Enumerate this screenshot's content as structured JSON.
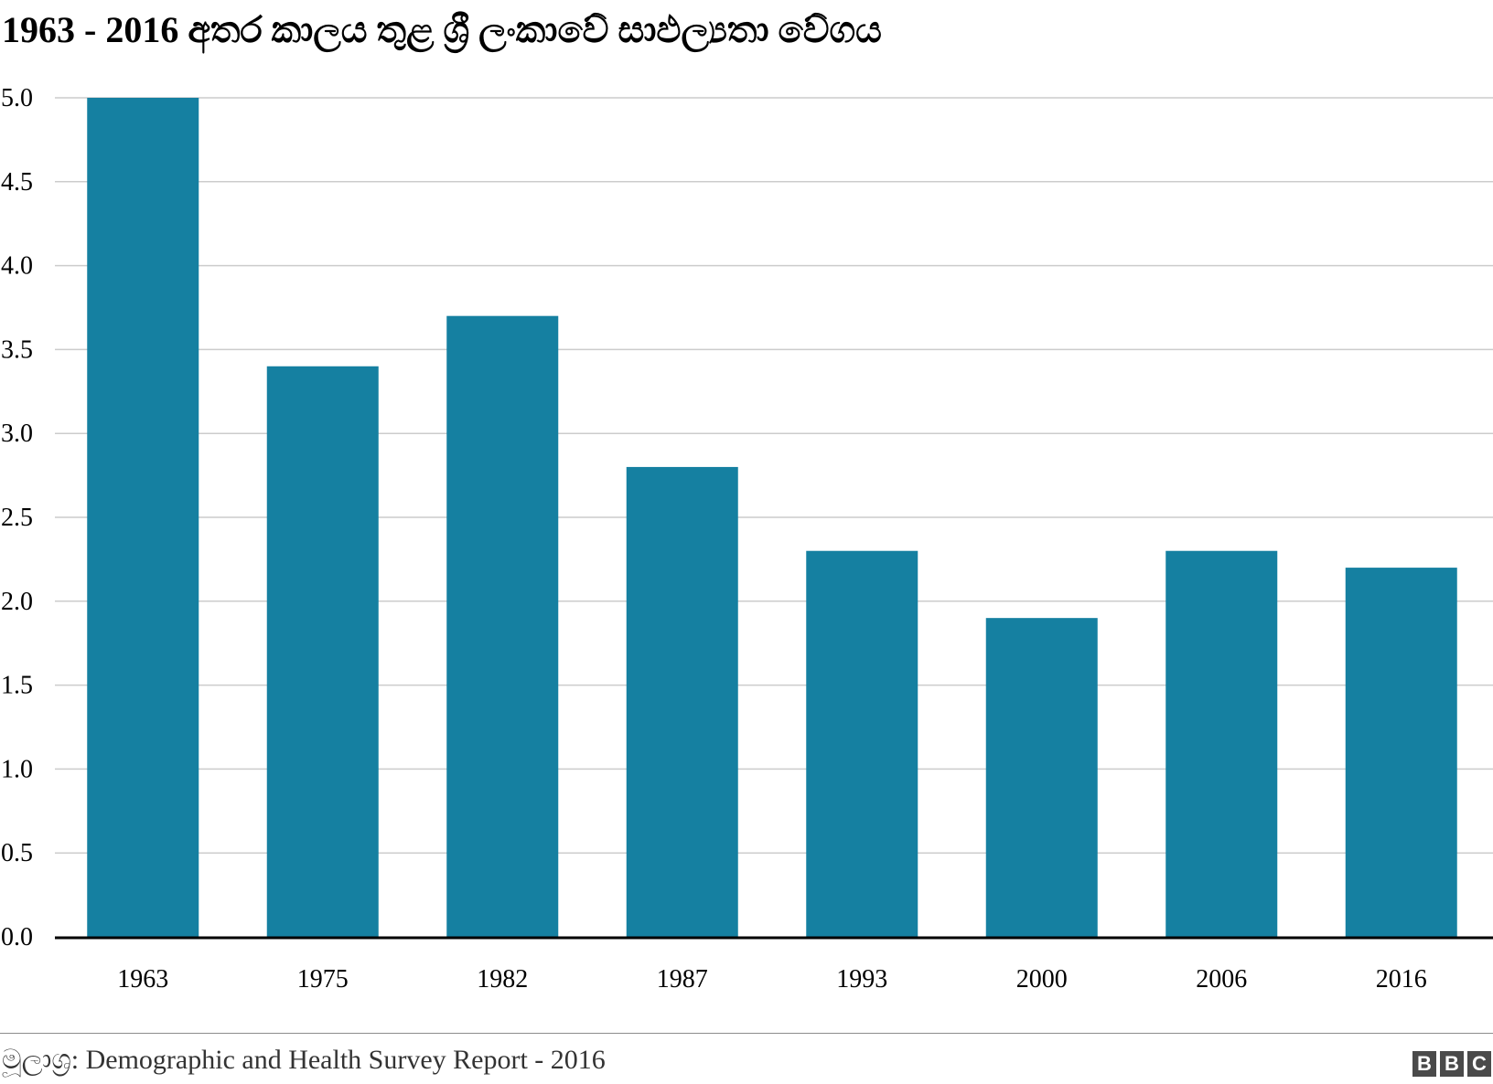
{
  "header": {
    "title": "1963 - 2016 අතර කාලය තුළ ශ්‍රී ලංකාවේ සාඵල්‍යතා වේගය"
  },
  "footer": {
    "source": "මූලාශ්‍ර: Demographic and Health Survey Report - 2016",
    "logo_letters": [
      "B",
      "B",
      "C"
    ]
  },
  "colors": {
    "bar": "#1580a1",
    "grid": "#cccccc",
    "baseline": "#000000"
  },
  "chart_data": {
    "type": "bar",
    "title": "1963 - 2016 අතර කාලය තුළ ශ්‍රී ලංකාවේ සාඵල්‍යතා වේගය",
    "xlabel": "",
    "ylabel": "",
    "categories": [
      "1963",
      "1975",
      "1982",
      "1987",
      "1993",
      "2000",
      "2006",
      "2016"
    ],
    "values": [
      5.0,
      3.4,
      3.7,
      2.8,
      2.3,
      1.9,
      2.3,
      2.2
    ],
    "ylim": [
      0,
      5
    ],
    "yticks": [
      "0.0",
      "0.5",
      "1.0",
      "1.5",
      "2.0",
      "2.5",
      "3.0",
      "3.5",
      "4.0",
      "4.5",
      "5.0"
    ],
    "grid": true,
    "legend": "none"
  }
}
